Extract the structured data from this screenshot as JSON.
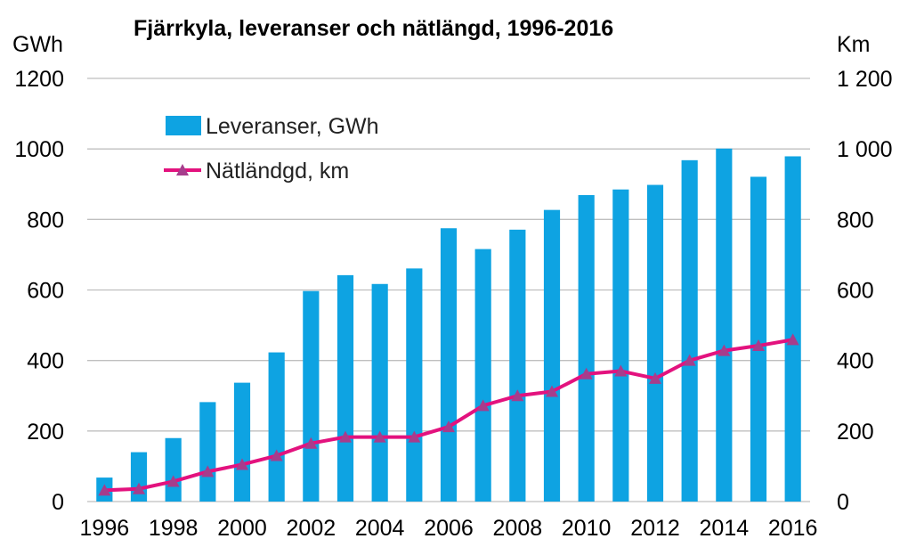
{
  "chart_data": {
    "type": "bar",
    "title": "Fjärrkyla, leveranser och nätlängd, 1996-2016",
    "y_left_unit": "GWh",
    "y_right_unit": "Km",
    "x": [
      1996,
      1997,
      1998,
      1999,
      2000,
      2001,
      2002,
      2003,
      2004,
      2005,
      2006,
      2007,
      2008,
      2009,
      2010,
      2011,
      2012,
      2013,
      2014,
      2015,
      2016
    ],
    "x_tick_labels": [
      "1996",
      "1998",
      "2000",
      "2002",
      "2004",
      "2006",
      "2008",
      "2010",
      "2012",
      "2014",
      "2016"
    ],
    "y_left_ticks": [
      "0",
      "200",
      "400",
      "600",
      "800",
      "1000",
      "1200"
    ],
    "y_right_ticks": [
      "0",
      "200",
      "400",
      "600",
      "800",
      "1 000",
      "1 200"
    ],
    "ylim_left": [
      0,
      1200
    ],
    "ylim_right": [
      0,
      1200
    ],
    "grid": true,
    "legend_position": "top-left",
    "series": [
      {
        "name": "Leveranser, GWh",
        "type": "bar",
        "axis": "left",
        "color": "#0EA3E2",
        "values": [
          68,
          140,
          180,
          282,
          337,
          423,
          597,
          642,
          617,
          661,
          775,
          716,
          771,
          827,
          869,
          885,
          898,
          968,
          1001,
          921,
          979
        ]
      },
      {
        "name": "Nätländgd, km",
        "type": "line",
        "axis": "right",
        "color": "#E3127E",
        "marker_color": "#A63D8C",
        "values": [
          32,
          36,
          57,
          85,
          105,
          130,
          165,
          183,
          183,
          183,
          212,
          272,
          300,
          312,
          362,
          370,
          349,
          400,
          428,
          442,
          459
        ]
      }
    ]
  }
}
